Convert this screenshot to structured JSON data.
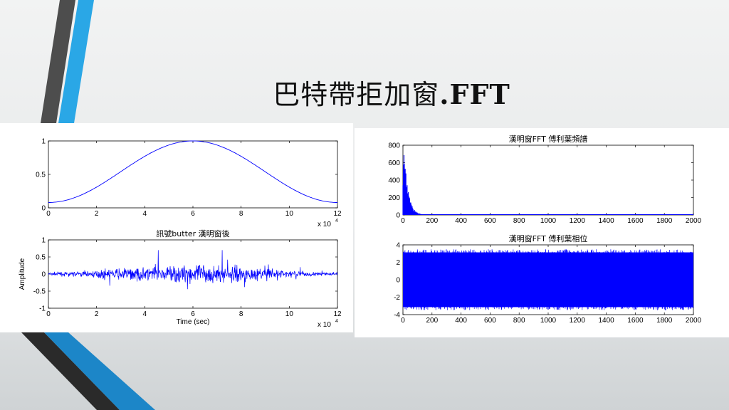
{
  "slide": {
    "title_cjk": "巴特帶拒加窗",
    "title_latin": ".FFT",
    "colors": {
      "accent_blue": "#2aa7e6",
      "stripe_gray": "#555555",
      "plot_blue": "#0000ff"
    }
  },
  "chart_data": [
    {
      "id": "window",
      "type": "line",
      "title": "",
      "xlabel": "",
      "ylabel": "",
      "x_multiplier": "x 10",
      "x_exponent": "4",
      "xlim": [
        0,
        12
      ],
      "ylim": [
        0,
        1
      ],
      "xticks": [
        "0",
        "2",
        "4",
        "6",
        "8",
        "10",
        "12"
      ],
      "yticks": [
        "0",
        "0.5",
        "1"
      ],
      "series": [
        {
          "shape": "hann window",
          "x": [
            0,
            1,
            2,
            3,
            4,
            5,
            6,
            7,
            8,
            9,
            10,
            11,
            12
          ],
          "y": [
            0.08,
            0.14,
            0.31,
            0.54,
            0.77,
            0.94,
            1.0,
            0.94,
            0.77,
            0.54,
            0.31,
            0.14,
            0.08
          ]
        }
      ]
    },
    {
      "id": "signal",
      "type": "line",
      "title": "訊號butter 漢明窗後",
      "xlabel": "Time (sec)",
      "ylabel": "Amplitude",
      "x_multiplier": "x 10",
      "x_exponent": "4",
      "xlim": [
        0,
        12
      ],
      "ylim": [
        -1,
        1
      ],
      "xticks": [
        "0",
        "2",
        "4",
        "6",
        "8",
        "10",
        "12"
      ],
      "yticks": [
        "-1",
        "-0.5",
        "0",
        "0.5",
        "1"
      ],
      "series": [
        {
          "envelope_peak": 0.7,
          "peak_at": 6
        }
      ]
    },
    {
      "id": "spectrum",
      "type": "bar",
      "title": "漢明窗FFT 傅利葉頻譜",
      "xlim": [
        0,
        2000
      ],
      "ylim": [
        0,
        800
      ],
      "xticks": [
        "0",
        "200",
        "400",
        "600",
        "800",
        "1000",
        "1200",
        "1400",
        "1600",
        "1800",
        "2000"
      ],
      "yticks": [
        "0",
        "200",
        "400",
        "600",
        "800"
      ],
      "series": [
        {
          "peak_value": 800,
          "peak_at": 10,
          "decay_end": 150
        }
      ]
    },
    {
      "id": "phase",
      "type": "area",
      "title": "漢明窗FFT 傅利葉相位",
      "xlim": [
        0,
        2000
      ],
      "ylim": [
        -4,
        4
      ],
      "xticks": [
        "0",
        "200",
        "400",
        "600",
        "800",
        "1000",
        "1200",
        "1400",
        "1600",
        "1800",
        "2000"
      ],
      "yticks": [
        "-4",
        "-2",
        "0",
        "2",
        "4"
      ],
      "series": [
        {
          "min": -3.14,
          "max": 3.14
        }
      ]
    }
  ]
}
